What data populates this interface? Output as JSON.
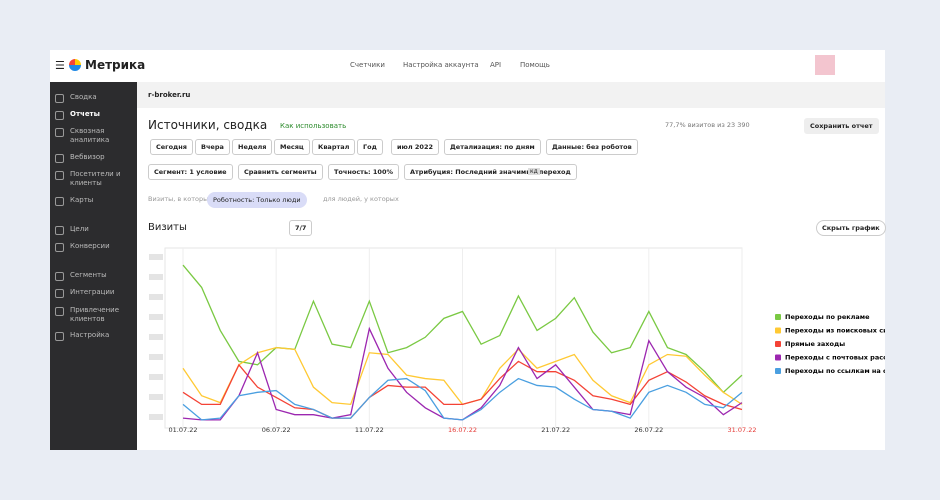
{
  "header": {
    "logo": "Метрика",
    "nav": [
      "Счетчики",
      "Настройка аккаунта",
      "API",
      "Помощь"
    ]
  },
  "sidebar": {
    "items": [
      "Сводка",
      "Отчеты",
      "Сквозная аналитика",
      "Вебвизор",
      "Посетители и клиенты",
      "Карты",
      "Цели",
      "Конверсии",
      "Сегменты",
      "Интеграции",
      "Привлечение клиентов",
      "Настройка"
    ]
  },
  "counter": "r-broker.ru",
  "report": {
    "title": "Источники, сводка",
    "hint": "Как использовать",
    "stats": "77,7% визитов из 23 390",
    "save": "Сохранить отчет"
  },
  "periods": [
    "Сегодня",
    "Вчера",
    "Неделя",
    "Месяц",
    "Квартал",
    "Год"
  ],
  "date": "июл 2022",
  "detail": "Детализация: по дням",
  "robots": "Данные: без роботов",
  "segment": "Сегмент: 1 условие",
  "compare": "Сравнить сегменты",
  "accuracy": "Точность: 100%",
  "attribution": "Атрибуция: Последний значимый переход",
  "attribution_tag": "кд",
  "filter": {
    "prefix": "Визиты, в которых",
    "chip": "Роботность: Только люди",
    "suffix": "для людей, у которых"
  },
  "chart_head": {
    "metric": "Визиты",
    "count": "7/7",
    "hide": "Скрыть график"
  },
  "chart": {
    "type": "line",
    "ylim": [
      0,
      100
    ],
    "categories": [
      "01.07.22",
      null,
      null,
      null,
      null,
      "06.07.22",
      null,
      null,
      null,
      null,
      "11.07.22",
      null,
      null,
      null,
      null,
      "16.07.22",
      null,
      null,
      null,
      null,
      "21.07.22",
      null,
      null,
      null,
      null,
      "26.07.22",
      null,
      null,
      null,
      null,
      "31.07.22"
    ],
    "label_colors": [
      "#333",
      null,
      null,
      null,
      null,
      "#333",
      null,
      null,
      null,
      null,
      "#333",
      null,
      null,
      null,
      null,
      "#e53935",
      null,
      null,
      null,
      null,
      "#333",
      null,
      null,
      null,
      null,
      "#333",
      null,
      null,
      null,
      null,
      "#e53935"
    ],
    "series": [
      {
        "name": "Переходы по рекламе",
        "color": "#7ac943",
        "values": [
          93,
          80,
          55,
          37,
          35,
          45,
          44,
          72,
          47,
          45,
          72,
          42,
          45,
          51,
          62,
          66,
          47,
          52,
          75,
          55,
          62,
          74,
          54,
          42,
          45,
          66,
          45,
          41,
          31,
          19,
          29
        ]
      },
      {
        "name": "Переходы из поисковых систем",
        "color": "#ffc933",
        "values": [
          33,
          17,
          13,
          35,
          42,
          45,
          44,
          22,
          13,
          12,
          42,
          41,
          29,
          27,
          26,
          12,
          15,
          33,
          44,
          33,
          37,
          41,
          26,
          17,
          13,
          35,
          41,
          40,
          29,
          19,
          12
        ]
      },
      {
        "name": "Прямые заходы",
        "color": "#f44336",
        "values": [
          19,
          12,
          12,
          35,
          22,
          16,
          10,
          9,
          4,
          4,
          16,
          23,
          22,
          22,
          12,
          12,
          15,
          27,
          37,
          31,
          31,
          26,
          17,
          15,
          12,
          26,
          31,
          25,
          17,
          12,
          9
        ]
      },
      {
        "name": "Переходы с почтовых рассылок",
        "color": "#9c27b0",
        "values": [
          4,
          3,
          3,
          17,
          42,
          9,
          6,
          6,
          4,
          6,
          56,
          33,
          19,
          10,
          4,
          3,
          10,
          23,
          45,
          27,
          35,
          22,
          9,
          8,
          6,
          49,
          31,
          22,
          16,
          6,
          13
        ]
      },
      {
        "name": "Переходы по ссылкам на сайтах",
        "color": "#4a9fe0",
        "values": [
          12,
          3,
          4,
          17,
          19,
          20,
          12,
          9,
          4,
          4,
          16,
          26,
          27,
          20,
          4,
          3,
          9,
          19,
          27,
          23,
          22,
          15,
          9,
          8,
          4,
          19,
          23,
          19,
          12,
          10,
          19
        ]
      }
    ]
  }
}
